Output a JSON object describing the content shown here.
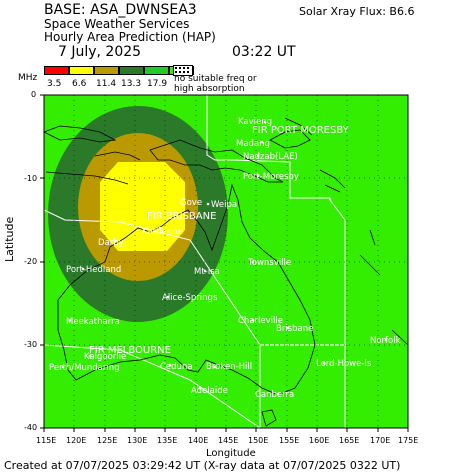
{
  "header": {
    "base": "BASE: ASA_DWNSEA3",
    "flux_label": "Solar Xray Flux: B6.6",
    "service": "Space Weather Services",
    "product": "Hourly Area Prediction (HAP)",
    "date": "7 July, 2025",
    "time": "03:22 UT"
  },
  "legend": {
    "unit": "MHz",
    "values": [
      "3.5",
      "6.6",
      "11.4",
      "13.3",
      "17.9"
    ],
    "colors": [
      "#ff0000",
      "#ffff00",
      "#bb9900",
      "#2a7a2a",
      "#22cc22",
      "#33ee00"
    ],
    "no_freq_text_1": "no suitable freq or",
    "no_freq_text_2": "high absorption"
  },
  "axes": {
    "ylabel": "Latitude",
    "xlabel": "Longitude",
    "lat_ticks": [
      "0",
      "-10",
      "-20",
      "-30",
      "-40"
    ],
    "lon_ticks": [
      "115E",
      "120E",
      "125E",
      "130E",
      "135E",
      "140E",
      "145E",
      "150E",
      "155E",
      "160E",
      "165E",
      "170E",
      "175E"
    ]
  },
  "places": {
    "fir_pm": "FIR PORT MORESBY",
    "kavieng": "Kavieng",
    "madang": "Madang",
    "nadzab": "Nadzab(LAE)",
    "port_moresby": "Port-Moresby",
    "gove": "Gove",
    "weipa": "Weipa",
    "fir_brisbane": "FIR BRISBANE",
    "katherine": "Katherine",
    "darby": "Darby",
    "townsville": "Townsville",
    "port_hedland": "Port-Hedland",
    "mt_isa": "Mt-Isa",
    "alice_springs": "Alice-Springs",
    "meekatharra": "Meekatharra",
    "charleville": "Charleville",
    "brisbane": "Brisbane",
    "norfolk": "Norfolk",
    "fir_melbourne": "FIR MELBOURNE",
    "kalgoorlie": "Kalgoorlie",
    "perth": "Perth/Mundaring",
    "ceduna": "Ceduna",
    "broken_hill": "Broken-Hill",
    "adelaide": "Adelaide",
    "lord_howe": "Lord-Howe-Is",
    "canberra": "Canberra"
  },
  "footer": "Created at 07/07/2025 03:29:42 UT (X-ray data at 07/07/2025 0322 UT)"
}
